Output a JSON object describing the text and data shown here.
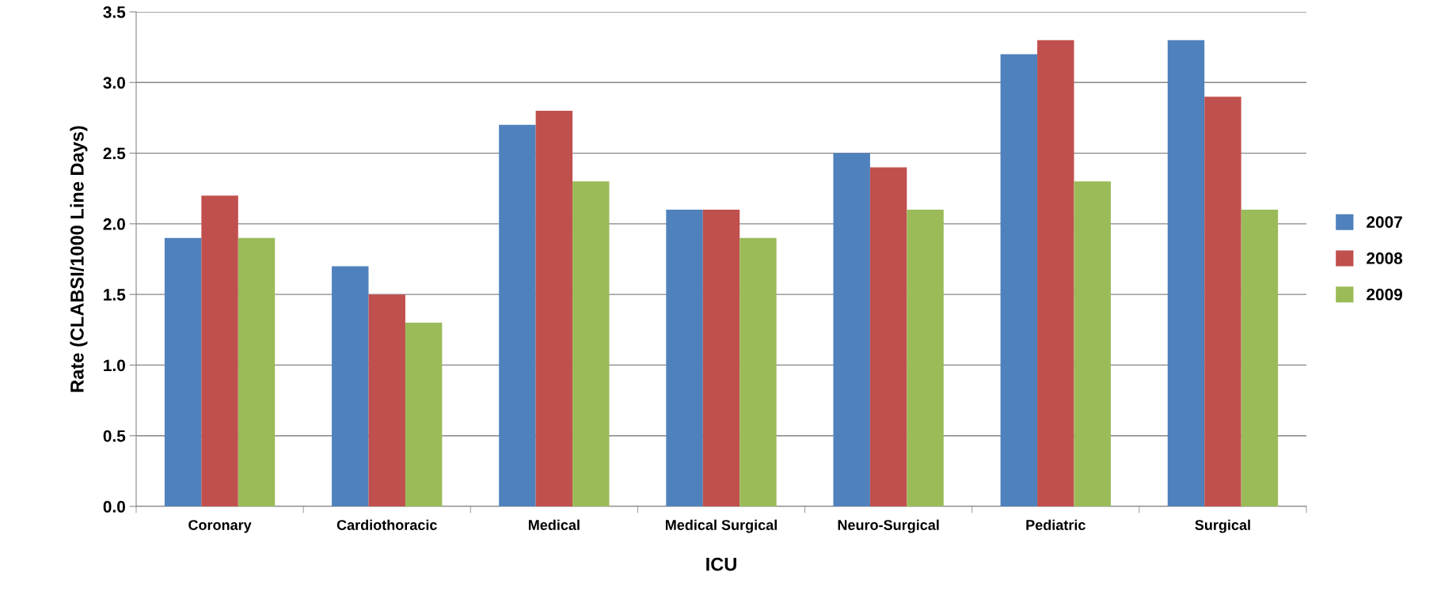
{
  "chart_data": {
    "type": "bar",
    "xlabel": "ICU",
    "ylabel": "Rate (CLABSI/1000 Line Days)",
    "categories": [
      "Coronary",
      "Cardiothoracic",
      "Medical",
      "Medical Surgical",
      "Neuro-Surgical",
      "Pediatric",
      "Surgical"
    ],
    "series": [
      {
        "name": "2007",
        "color": "#4f81bd",
        "values": [
          1.9,
          1.7,
          2.7,
          2.1,
          2.5,
          3.2,
          3.3
        ]
      },
      {
        "name": "2008",
        "color": "#c0504d",
        "values": [
          2.2,
          1.5,
          2.8,
          2.1,
          2.4,
          3.3,
          2.9
        ]
      },
      {
        "name": "2009",
        "color": "#9bbb59",
        "values": [
          1.9,
          1.3,
          2.3,
          1.9,
          2.1,
          2.3,
          2.1
        ]
      }
    ],
    "ylim": [
      0,
      3.5
    ],
    "yticks": [
      {
        "value": 0,
        "label": "0.0"
      },
      {
        "value": 0.5,
        "label": "0.5"
      },
      {
        "value": 1,
        "label": "1.0"
      },
      {
        "value": 1.5,
        "label": "1.5"
      },
      {
        "value": 2,
        "label": "2.0"
      },
      {
        "value": 2.5,
        "label": "2.5"
      },
      {
        "value": 3,
        "label": "3.0"
      },
      {
        "value": 3.5,
        "label": "3.5"
      }
    ],
    "grid": "y",
    "legend": "right"
  }
}
